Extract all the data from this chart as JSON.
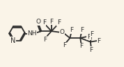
{
  "bg_color": "#faf4e8",
  "bond_color": "#2a2a2a",
  "atom_color": "#2a2a2a",
  "bond_width": 1.3,
  "font_size": 6.5,
  "figsize": [
    1.78,
    0.97
  ],
  "dpi": 100,
  "xlim": [
    0,
    9.5
  ],
  "ylim": [
    0,
    5.2
  ]
}
